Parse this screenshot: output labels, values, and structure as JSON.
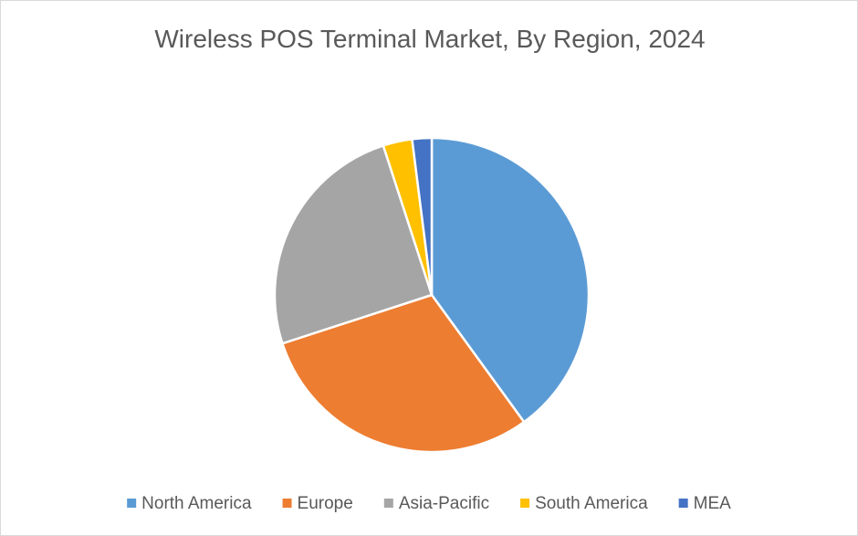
{
  "chart_data": {
    "type": "pie",
    "title": "Wireless POS Terminal Market, By Region, 2024",
    "categories": [
      "North America",
      "Europe",
      "Asia-Pacific",
      "South America",
      "MEA"
    ],
    "values": [
      40,
      30,
      25,
      3,
      2
    ],
    "colors": [
      "#5b9bd5",
      "#ed7d31",
      "#a5a5a5",
      "#ffc000",
      "#4472c4"
    ],
    "legend": "bottom"
  }
}
